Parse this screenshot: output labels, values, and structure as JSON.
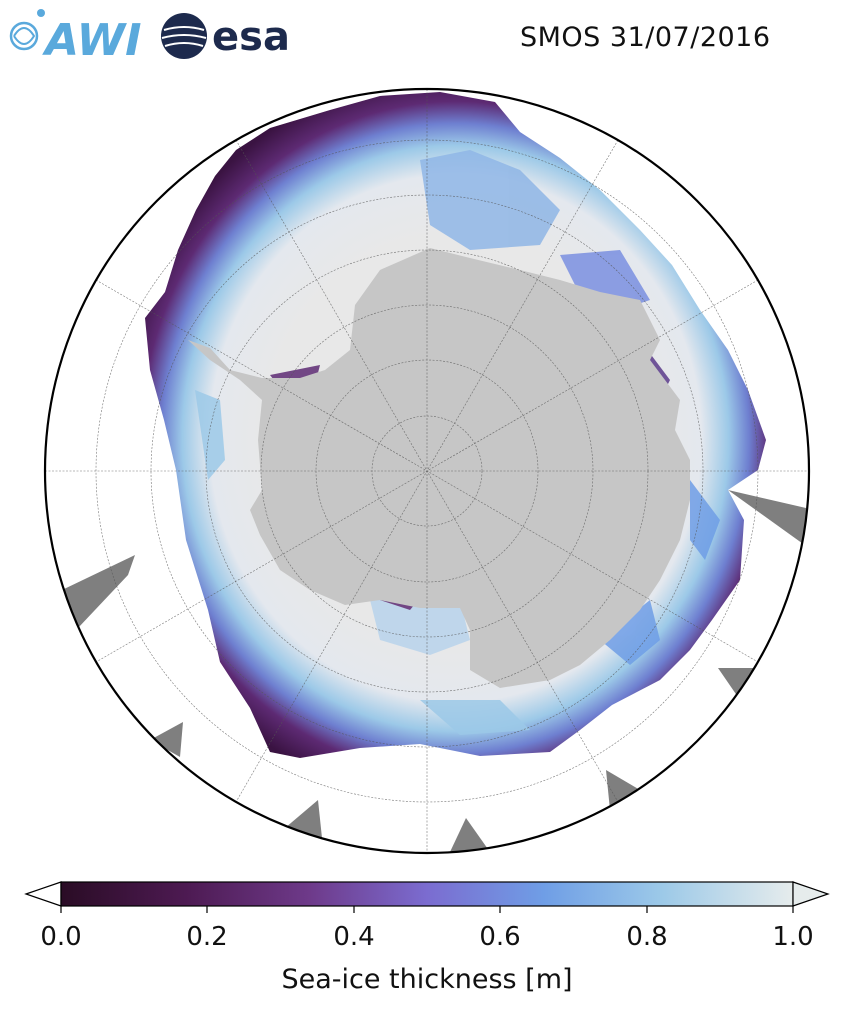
{
  "header": {
    "title": "SMOS 31/07/2016",
    "logos": [
      {
        "text": "AWI",
        "icon": "awi-logo",
        "color": "#5aa9dc"
      },
      {
        "text": "esa",
        "icon": "esa-logo",
        "color": "#1d2a4d"
      }
    ]
  },
  "map": {
    "projection": "south-polar-stereographic",
    "region": "Antarctica / Southern Ocean",
    "variable": "Sea-ice thickness",
    "graticule": true,
    "colors": {
      "land": "#c6c6c6",
      "ice_thick": "#e8e8e8",
      "ice_edge": "#4a1f52",
      "no_data": "#7f7f7f",
      "ocean": "#ffffff"
    }
  },
  "colorbar": {
    "label": "Sea-ice thickness [m]",
    "ticks": [
      "0.0",
      "0.2",
      "0.4",
      "0.6",
      "0.8",
      "1.0"
    ],
    "range": [
      0.0,
      1.0
    ],
    "extend": "both",
    "colormap": [
      "#2a0c25",
      "#4d1a52",
      "#6e3a8a",
      "#7b6cd0",
      "#6f9ee6",
      "#9cc9e8",
      "#e6ecec"
    ]
  }
}
